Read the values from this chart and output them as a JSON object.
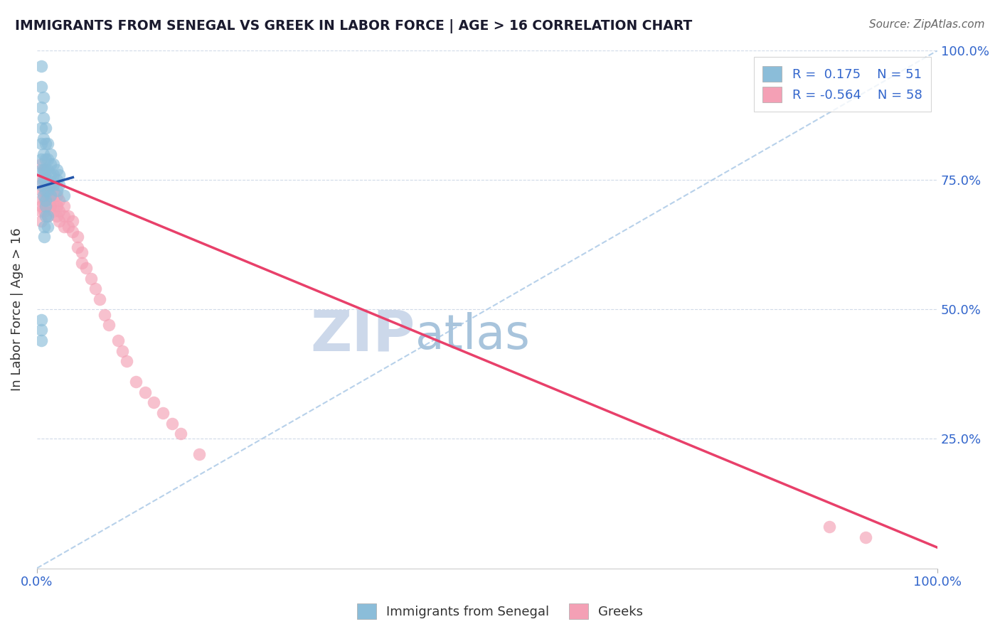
{
  "title": "IMMIGRANTS FROM SENEGAL VS GREEK IN LABOR FORCE | AGE > 16 CORRELATION CHART",
  "source": "Source: ZipAtlas.com",
  "ylabel": "In Labor Force | Age > 16",
  "xlim": [
    0.0,
    1.0
  ],
  "ylim": [
    0.0,
    1.0
  ],
  "ytick_labels_right": [
    "25.0%",
    "50.0%",
    "75.0%",
    "100.0%"
  ],
  "legend_label1": "Immigrants from Senegal",
  "legend_label2": "Greeks",
  "color_blue": "#8bbdd9",
  "color_pink": "#f4a0b5",
  "color_blue_line": "#2255aa",
  "color_pink_line": "#e8406a",
  "color_diag": "#b0cce8",
  "watermark_zip": "ZIP",
  "watermark_atlas": "atlas",
  "watermark_color_zip": "#ccd8ea",
  "watermark_color_atlas": "#a8c4dc",
  "blue_x": [
    0.005,
    0.005,
    0.005,
    0.005,
    0.005,
    0.005,
    0.005,
    0.005,
    0.007,
    0.007,
    0.007,
    0.007,
    0.007,
    0.007,
    0.007,
    0.01,
    0.01,
    0.01,
    0.01,
    0.01,
    0.01,
    0.01,
    0.01,
    0.01,
    0.012,
    0.012,
    0.012,
    0.012,
    0.012,
    0.015,
    0.015,
    0.015,
    0.015,
    0.015,
    0.018,
    0.018,
    0.018,
    0.022,
    0.022,
    0.022,
    0.025,
    0.025,
    0.005,
    0.005,
    0.005,
    0.008,
    0.008,
    0.012,
    0.012,
    0.03
  ],
  "blue_y": [
    0.97,
    0.93,
    0.89,
    0.85,
    0.82,
    0.79,
    0.77,
    0.74,
    0.91,
    0.87,
    0.83,
    0.8,
    0.77,
    0.75,
    0.72,
    0.85,
    0.82,
    0.79,
    0.77,
    0.75,
    0.73,
    0.71,
    0.7,
    0.68,
    0.82,
    0.79,
    0.77,
    0.75,
    0.73,
    0.8,
    0.78,
    0.76,
    0.74,
    0.72,
    0.78,
    0.76,
    0.74,
    0.77,
    0.75,
    0.73,
    0.76,
    0.74,
    0.48,
    0.46,
    0.44,
    0.66,
    0.64,
    0.68,
    0.66,
    0.72
  ],
  "pink_x": [
    0.005,
    0.005,
    0.005,
    0.005,
    0.005,
    0.005,
    0.005,
    0.008,
    0.008,
    0.008,
    0.008,
    0.008,
    0.012,
    0.012,
    0.012,
    0.012,
    0.015,
    0.015,
    0.015,
    0.018,
    0.018,
    0.018,
    0.022,
    0.022,
    0.022,
    0.025,
    0.025,
    0.025,
    0.03,
    0.03,
    0.03,
    0.035,
    0.035,
    0.04,
    0.04,
    0.045,
    0.045,
    0.05,
    0.05,
    0.055,
    0.06,
    0.065,
    0.07,
    0.075,
    0.08,
    0.09,
    0.095,
    0.1,
    0.11,
    0.12,
    0.13,
    0.14,
    0.15,
    0.16,
    0.18,
    0.88,
    0.92
  ],
  "pink_y": [
    0.78,
    0.75,
    0.73,
    0.71,
    0.7,
    0.69,
    0.67,
    0.77,
    0.75,
    0.73,
    0.71,
    0.69,
    0.74,
    0.72,
    0.7,
    0.68,
    0.74,
    0.72,
    0.7,
    0.73,
    0.71,
    0.69,
    0.72,
    0.7,
    0.68,
    0.71,
    0.69,
    0.67,
    0.7,
    0.68,
    0.66,
    0.68,
    0.66,
    0.67,
    0.65,
    0.64,
    0.62,
    0.61,
    0.59,
    0.58,
    0.56,
    0.54,
    0.52,
    0.49,
    0.47,
    0.44,
    0.42,
    0.4,
    0.36,
    0.34,
    0.32,
    0.3,
    0.28,
    0.26,
    0.22,
    0.08,
    0.06
  ],
  "pink_line_x0": 0.0,
  "pink_line_x1": 1.0,
  "pink_line_y0": 0.76,
  "pink_line_y1": 0.04,
  "blue_line_x0": 0.0,
  "blue_line_x1": 0.04,
  "blue_line_y0": 0.735,
  "blue_line_y1": 0.755
}
